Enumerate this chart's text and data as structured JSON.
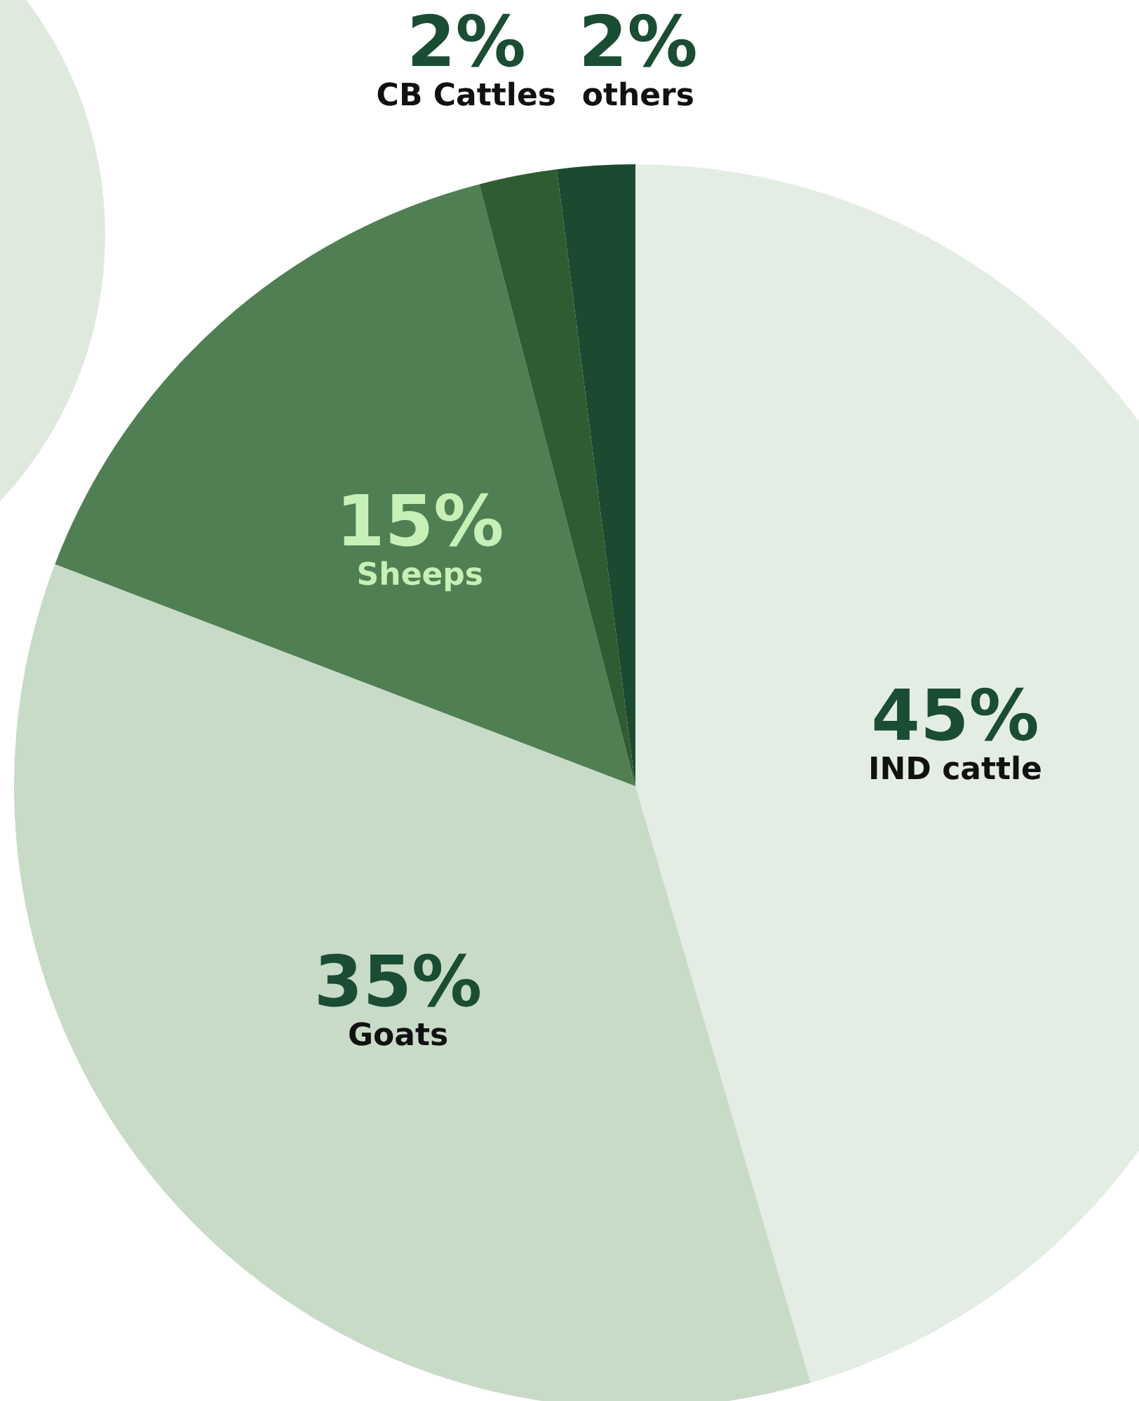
{
  "chart_data": {
    "type": "pie",
    "categories": [
      "IND cattle",
      "Goats",
      "Sheeps",
      "CB Cattles",
      "others"
    ],
    "values": [
      45,
      35,
      15,
      2,
      2
    ],
    "value_labels": [
      "45%",
      "35%",
      "15%",
      "2%",
      "2%"
    ],
    "colors": [
      "#e4ede3",
      "#c8dbc6",
      "#4f7f52",
      "#2f5c32",
      "#1b4a30"
    ],
    "legend": false
  }
}
